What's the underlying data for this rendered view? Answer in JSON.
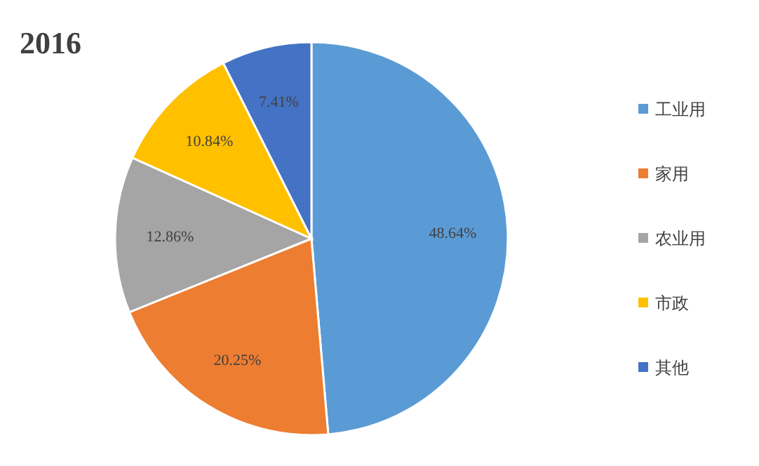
{
  "chart_data": {
    "type": "pie",
    "title": "2016",
    "categories": [
      "工业用",
      "家用",
      "农业用",
      "市政",
      "其他"
    ],
    "values": [
      48.64,
      20.25,
      12.86,
      10.84,
      7.41
    ],
    "value_labels": [
      "48.64%",
      "20.25%",
      "12.86%",
      "10.84%",
      "7.41%"
    ],
    "colors": [
      "#5b9bd5",
      "#ed7d31",
      "#a5a5a5",
      "#ffc000",
      "#4472c4"
    ],
    "legend": "right"
  }
}
